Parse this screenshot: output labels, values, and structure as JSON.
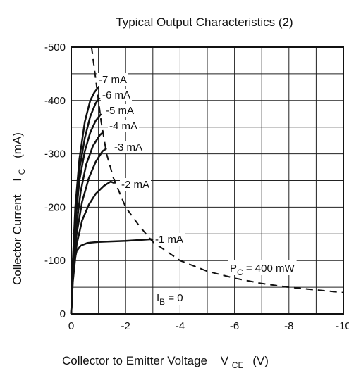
{
  "chart_data": {
    "type": "line",
    "title": "Typical Output Characteristics (2)",
    "xlabel": {
      "main": "Collector to Emitter Voltage",
      "symbol": "V",
      "sub": "CE",
      "unit": "(V)"
    },
    "ylabel": {
      "main": "Collector Current",
      "symbol": "I",
      "sub": "C",
      "unit": "(mA)"
    },
    "xlim": [
      0,
      -10
    ],
    "ylim": [
      0,
      -500
    ],
    "x_ticks": [
      "0",
      "-2",
      "-4",
      "-6",
      "-8",
      "-10"
    ],
    "y_ticks": [
      "0",
      "-100",
      "-200",
      "-300",
      "-400",
      "-500"
    ],
    "grid": true,
    "series": [
      {
        "name": "-7 mA",
        "points": [
          [
            0,
            0
          ],
          [
            -0.05,
            -90
          ],
          [
            -0.15,
            -200
          ],
          [
            -0.3,
            -290
          ],
          [
            -0.5,
            -360
          ],
          [
            -0.7,
            -400
          ],
          [
            -0.85,
            -415
          ],
          [
            -1.0,
            -425
          ]
        ]
      },
      {
        "name": "-6 mA",
        "points": [
          [
            0,
            0
          ],
          [
            -0.05,
            -85
          ],
          [
            -0.15,
            -185
          ],
          [
            -0.3,
            -270
          ],
          [
            -0.5,
            -330
          ],
          [
            -0.7,
            -370
          ],
          [
            -0.9,
            -395
          ],
          [
            -1.05,
            -405
          ]
        ]
      },
      {
        "name": "-5 mA",
        "points": [
          [
            0,
            0
          ],
          [
            -0.05,
            -80
          ],
          [
            -0.15,
            -170
          ],
          [
            -0.3,
            -250
          ],
          [
            -0.5,
            -305
          ],
          [
            -0.7,
            -340
          ],
          [
            -0.9,
            -362
          ],
          [
            -1.1,
            -375
          ]
        ]
      },
      {
        "name": "-4 mA",
        "points": [
          [
            0,
            0
          ],
          [
            -0.06,
            -75
          ],
          [
            -0.18,
            -160
          ],
          [
            -0.35,
            -230
          ],
          [
            -0.55,
            -280
          ],
          [
            -0.8,
            -315
          ],
          [
            -1.05,
            -335
          ],
          [
            -1.2,
            -342
          ]
        ]
      },
      {
        "name": "-3 mA",
        "points": [
          [
            0,
            0
          ],
          [
            -0.06,
            -70
          ],
          [
            -0.2,
            -150
          ],
          [
            -0.4,
            -210
          ],
          [
            -0.65,
            -255
          ],
          [
            -0.9,
            -285
          ],
          [
            -1.15,
            -305
          ],
          [
            -1.3,
            -310
          ]
        ]
      },
      {
        "name": "-2 mA",
        "points": [
          [
            0,
            0
          ],
          [
            -0.06,
            -60
          ],
          [
            -0.2,
            -130
          ],
          [
            -0.4,
            -175
          ],
          [
            -0.65,
            -205
          ],
          [
            -0.9,
            -225
          ],
          [
            -1.2,
            -240
          ],
          [
            -1.45,
            -248
          ],
          [
            -1.6,
            -245
          ]
        ]
      },
      {
        "name": "-1 mA",
        "points": [
          [
            0,
            0
          ],
          [
            -0.05,
            -60
          ],
          [
            -0.12,
            -100
          ],
          [
            -0.2,
            -118
          ],
          [
            -0.35,
            -128
          ],
          [
            -0.6,
            -133
          ],
          [
            -1.0,
            -135
          ],
          [
            -2.0,
            -137
          ],
          [
            -2.95,
            -140
          ],
          [
            -3.0,
            -138
          ]
        ]
      }
    ],
    "power_curve": {
      "label": "P",
      "label_sub": "C",
      "label_rest": " = 400 mW",
      "style": "dashed",
      "points": [
        [
          -0.75,
          -500
        ],
        [
          -0.95,
          -420
        ],
        [
          -1.1,
          -360
        ],
        [
          -1.3,
          -300
        ],
        [
          -1.55,
          -255
        ],
        [
          -2.0,
          -200
        ],
        [
          -2.5,
          -165
        ],
        [
          -3.0,
          -135
        ],
        [
          -4.0,
          -100
        ],
        [
          -5.0,
          -80
        ],
        [
          -6.0,
          -67
        ],
        [
          -7.0,
          -57
        ],
        [
          -8.0,
          -50
        ],
        [
          -9.0,
          -45
        ],
        [
          -10.0,
          -40
        ]
      ]
    },
    "ib_zero_label": {
      "symbol": "I",
      "sub": "B",
      "rest": " = 0"
    }
  }
}
